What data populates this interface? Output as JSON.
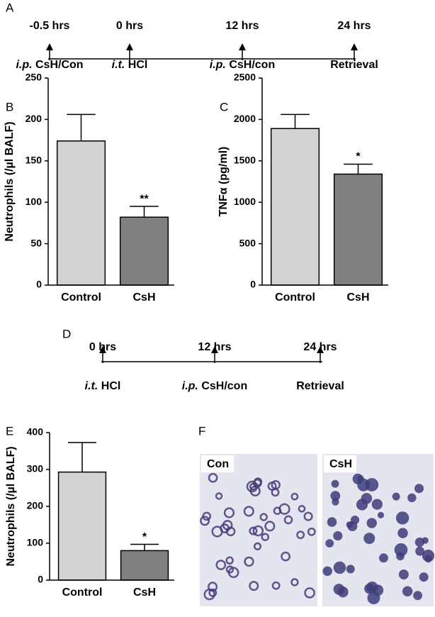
{
  "panel_labels": [
    "A",
    "B",
    "C",
    "D",
    "E",
    "F"
  ],
  "timelines": [
    {
      "times": [
        "-0.5 hrs",
        "0 hrs",
        "12 hrs",
        "24 hrs"
      ],
      "events": [
        {
          "route": "i.p.",
          "label": "CsH/Con"
        },
        {
          "route": "i.t.",
          "label": "HCl"
        },
        {
          "route": "i.p.",
          "label": "CsH/con"
        },
        {
          "label": "Retrieval"
        }
      ]
    },
    {
      "times": [
        "0 hrs",
        "12 hrs",
        "24 hrs"
      ],
      "events": [
        {
          "route": "i.t.",
          "label": "HCl"
        },
        {
          "route": "i.p.",
          "label": "CsH/con"
        },
        {
          "label": "Retrieval"
        }
      ]
    }
  ],
  "chart_data": [
    {
      "type": "bar",
      "ylabel": "Neutrophils (/µl BALF)",
      "categories": [
        "Control",
        "CsH"
      ],
      "values": [
        174,
        82
      ],
      "errors": [
        32,
        13
      ],
      "value_annotations": [
        null,
        "**"
      ],
      "colors": [
        "#d3d3d3",
        "#808080"
      ],
      "ylim": [
        0,
        250
      ],
      "yticks": [
        0,
        50,
        100,
        150,
        200,
        250
      ]
    },
    {
      "type": "bar",
      "ylabel": "TNFα (pg/ml)",
      "categories": [
        "Control",
        "CsH"
      ],
      "values": [
        1890,
        1340
      ],
      "errors": [
        170,
        120
      ],
      "value_annotations": [
        null,
        "*"
      ],
      "colors": [
        "#d3d3d3",
        "#808080"
      ],
      "ylim": [
        0,
        2500
      ],
      "yticks": [
        0,
        500,
        1000,
        1500,
        2000,
        2500
      ]
    },
    {
      "type": "bar",
      "ylabel": "Neutrophils (/µl BALF)",
      "categories": [
        "Control",
        "CsH"
      ],
      "values": [
        293,
        80
      ],
      "errors": [
        80,
        17
      ],
      "value_annotations": [
        null,
        "*"
      ],
      "colors": [
        "#d3d3d3",
        "#808080"
      ],
      "ylim": [
        0,
        400
      ],
      "yticks": [
        0,
        100,
        200,
        300,
        400
      ]
    }
  ],
  "micrographs": [
    "Con",
    "CsH"
  ]
}
